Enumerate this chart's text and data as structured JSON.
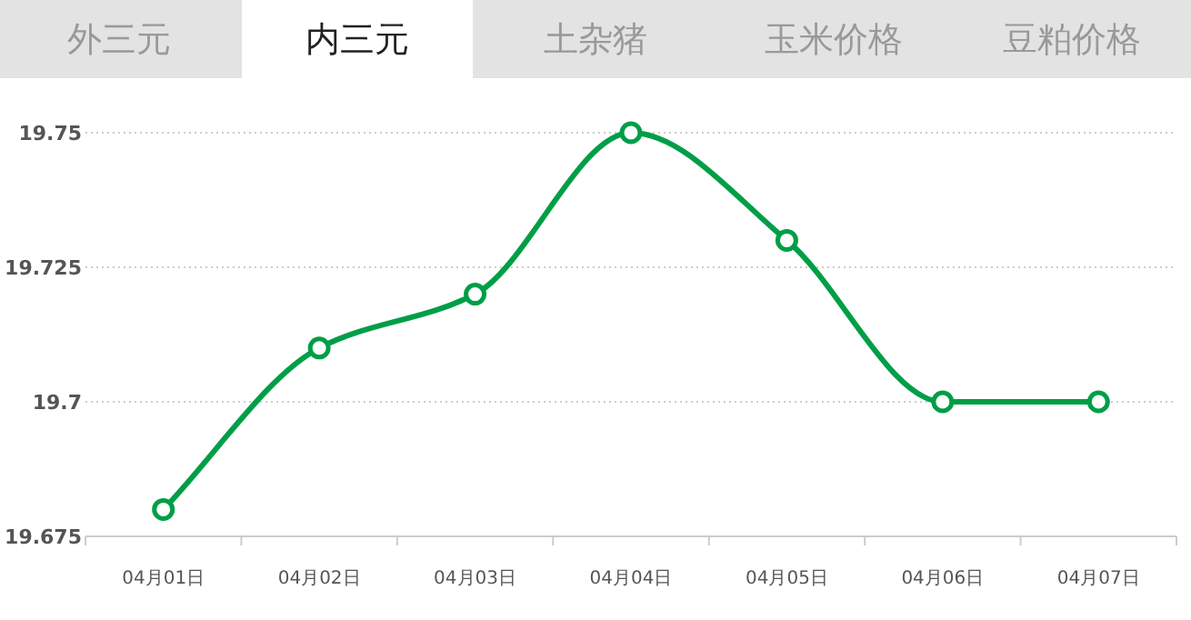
{
  "chart_data": {
    "type": "line",
    "title": "内三元",
    "annotations": [
      "外三元",
      "土杂猪",
      "玉米价格",
      "豆粕价格"
    ],
    "categories": [
      "04月01日",
      "04月02日",
      "04月03日",
      "04月04日",
      "04月05日",
      "04月06日",
      "04月07日"
    ],
    "series": [
      {
        "color": "#009e47",
        "values": [
          19.68,
          19.71,
          19.72,
          19.75,
          19.73,
          19.7,
          19.7
        ]
      }
    ],
    "ylim": [
      19.675,
      19.75
    ],
    "yticks": [
      19.675,
      19.7,
      19.725,
      19.75
    ],
    "grid": "y",
    "marker": "circle",
    "line_style": "solid"
  }
}
